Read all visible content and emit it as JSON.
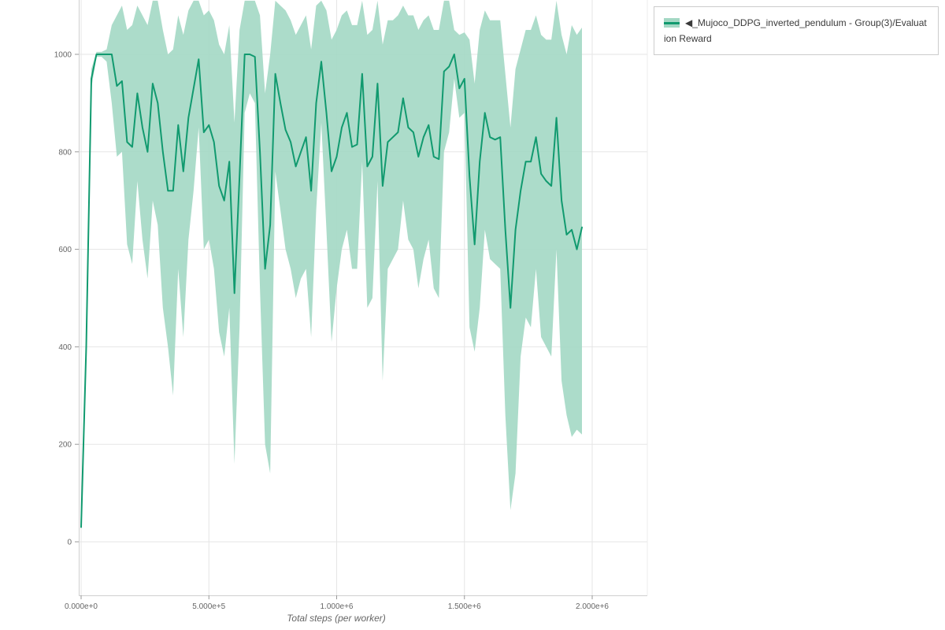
{
  "style": {
    "background": "#ffffff",
    "grid_color": "#e5e5e5",
    "axis_line_color": "#cfcfcf",
    "right_border_color": "#ececec",
    "tick_mark_color": "#999999",
    "tick_label_color": "#666666",
    "xlabel_color": "#666666",
    "legend_border_color": "#cccccc",
    "legend_text_color": "#3a3a3a"
  },
  "chart_data": {
    "type": "line",
    "title": "",
    "xlabel": "Total steps (per worker)",
    "ylabel": "",
    "grid": true,
    "legend": {
      "position": "top-right",
      "label": "◀_Mujoco_DDPG_inverted_pendulum - Group(3)/Evaluation Reward"
    },
    "xlim": [
      0,
      2216000
    ],
    "ylim": [
      -111,
      1112
    ],
    "x_ticks": [
      {
        "value": 0,
        "label": "0.000e+0"
      },
      {
        "value": 500000,
        "label": "5.000e+5"
      },
      {
        "value": 1000000,
        "label": "1.000e+6"
      },
      {
        "value": 1500000,
        "label": "1.500e+6"
      },
      {
        "value": 2000000,
        "label": "2.000e+6"
      }
    ],
    "y_ticks": [
      {
        "value": 0,
        "label": "0"
      },
      {
        "value": 200,
        "label": "200"
      },
      {
        "value": 400,
        "label": "400"
      },
      {
        "value": 600,
        "label": "600"
      },
      {
        "value": 800,
        "label": "800"
      },
      {
        "value": 1000,
        "label": "1000"
      }
    ],
    "series": [
      {
        "name": "◀_Mujoco_DDPG_inverted_pendulum - Group(3)/Evaluation Reward",
        "color": "#119a6f",
        "band_color": "#a3d8c4",
        "x_start": 0,
        "x_step": 20000,
        "mean": [
          30,
          400,
          950,
          1000,
          1000,
          1000,
          1000,
          935,
          945,
          820,
          810,
          920,
          850,
          800,
          940,
          900,
          800,
          720,
          720,
          855,
          760,
          870,
          930,
          990,
          840,
          855,
          820,
          730,
          700,
          780,
          510,
          750,
          1000,
          1000,
          995,
          800,
          560,
          650,
          960,
          900,
          845,
          820,
          770,
          800,
          830,
          720,
          900,
          985,
          880,
          760,
          790,
          850,
          880,
          810,
          815,
          960,
          770,
          790,
          940,
          730,
          820,
          830,
          840,
          910,
          850,
          840,
          790,
          830,
          855,
          790,
          785,
          965,
          975,
          1000,
          930,
          950,
          750,
          610,
          780,
          880,
          830,
          825,
          830,
          640,
          480,
          640,
          720,
          780,
          780,
          830,
          755,
          740,
          730,
          870,
          700,
          630,
          640,
          600,
          645
        ],
        "hi": [
          35,
          430,
          970,
          1005,
          1005,
          1010,
          1060,
          1080,
          1100,
          1050,
          1060,
          1100,
          1080,
          1060,
          1110,
          1110,
          1050,
          1000,
          1010,
          1080,
          1040,
          1090,
          1110,
          1110,
          1080,
          1090,
          1070,
          1020,
          1000,
          1060,
          860,
          1050,
          1110,
          1110,
          1110,
          1080,
          920,
          1000,
          1110,
          1100,
          1090,
          1070,
          1040,
          1060,
          1080,
          1010,
          1100,
          1110,
          1090,
          1030,
          1050,
          1080,
          1090,
          1060,
          1060,
          1110,
          1040,
          1050,
          1110,
          1020,
          1070,
          1070,
          1080,
          1100,
          1080,
          1080,
          1050,
          1070,
          1080,
          1050,
          1050,
          1110,
          1110,
          1050,
          1040,
          1045,
          1030,
          940,
          1050,
          1090,
          1070,
          1070,
          1070,
          960,
          850,
          970,
          1010,
          1050,
          1050,
          1080,
          1040,
          1030,
          1030,
          1110,
          1040,
          1000,
          1060,
          1040,
          1055
        ],
        "lo": [
          25,
          370,
          930,
          995,
          995,
          985,
          900,
          790,
          800,
          610,
          570,
          740,
          620,
          540,
          700,
          650,
          480,
          400,
          300,
          560,
          420,
          620,
          720,
          850,
          600,
          620,
          560,
          430,
          380,
          480,
          160,
          440,
          880,
          920,
          900,
          520,
          200,
          140,
          760,
          680,
          600,
          560,
          500,
          540,
          560,
          420,
          680,
          860,
          640,
          410,
          520,
          600,
          640,
          560,
          560,
          780,
          480,
          500,
          740,
          330,
          560,
          580,
          600,
          700,
          620,
          600,
          520,
          580,
          620,
          520,
          500,
          800,
          840,
          950,
          870,
          880,
          440,
          390,
          480,
          640,
          580,
          570,
          560,
          260,
          65,
          140,
          380,
          460,
          440,
          560,
          420,
          400,
          380,
          600,
          330,
          260,
          215,
          230,
          220
        ]
      }
    ]
  }
}
